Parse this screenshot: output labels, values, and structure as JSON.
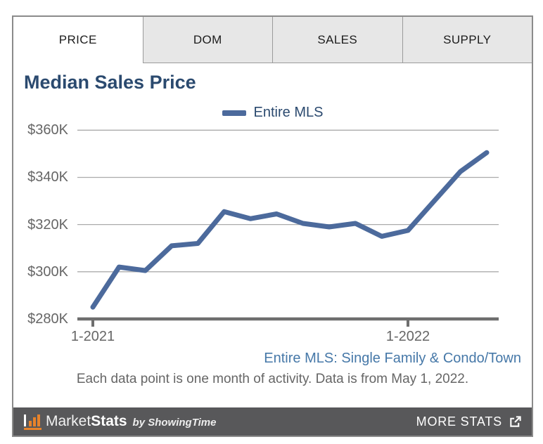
{
  "tabs": {
    "items": [
      {
        "label": "PRICE",
        "active": true
      },
      {
        "label": "DOM",
        "active": false
      },
      {
        "label": "SALES",
        "active": false
      },
      {
        "label": "SUPPLY",
        "active": false
      }
    ]
  },
  "chart": {
    "title": "Median Sales Price",
    "legend_label": "Entire MLS",
    "subtitle": "Entire MLS: Single Family & Condo/Town",
    "footnote": "Each data point is one month of activity. Data is from May 1, 2022."
  },
  "chart_data": {
    "type": "line",
    "title": "Median Sales Price",
    "unit": "USD thousands",
    "x": [
      "1-2021",
      "2-2021",
      "3-2021",
      "4-2021",
      "5-2021",
      "6-2021",
      "7-2021",
      "8-2021",
      "9-2021",
      "10-2021",
      "11-2021",
      "12-2021",
      "1-2022",
      "2-2022",
      "3-2022",
      "4-2022"
    ],
    "series": [
      {
        "name": "Entire MLS",
        "values": [
          285,
          302,
          300.5,
          311,
          312,
          325.5,
          322.5,
          324.5,
          320.5,
          319,
          320.5,
          315,
          317.5,
          330,
          342.5,
          350.5
        ]
      }
    ],
    "ylim": [
      280,
      360
    ],
    "y_ticks": [
      {
        "label": "$360K",
        "value": 360
      },
      {
        "label": "$340K",
        "value": 340
      },
      {
        "label": "$320K",
        "value": 320
      },
      {
        "label": "$300K",
        "value": 300
      },
      {
        "label": "$280K",
        "value": 280
      }
    ],
    "x_ticks": [
      {
        "label": "1-2021",
        "index": 0
      },
      {
        "label": "1-2022",
        "index": 12
      }
    ],
    "grid": "horizontal",
    "legend_position": "top-center"
  },
  "footer": {
    "brand_market": "Market",
    "brand_stats": "Stats",
    "brand_byline": "by ShowingTime",
    "more_stats_label": "MORE STATS"
  },
  "colors": {
    "line": "#4c6a9c",
    "title_navy": "#2b4a6f",
    "subtitle_blue": "#4678a8",
    "axis_gray": "#6e6e6e",
    "grid_gray": "#ababab",
    "footer_bg": "#58585a",
    "brand_orange": "#e8832a",
    "tab_inactive_bg": "#e7e7e7"
  }
}
